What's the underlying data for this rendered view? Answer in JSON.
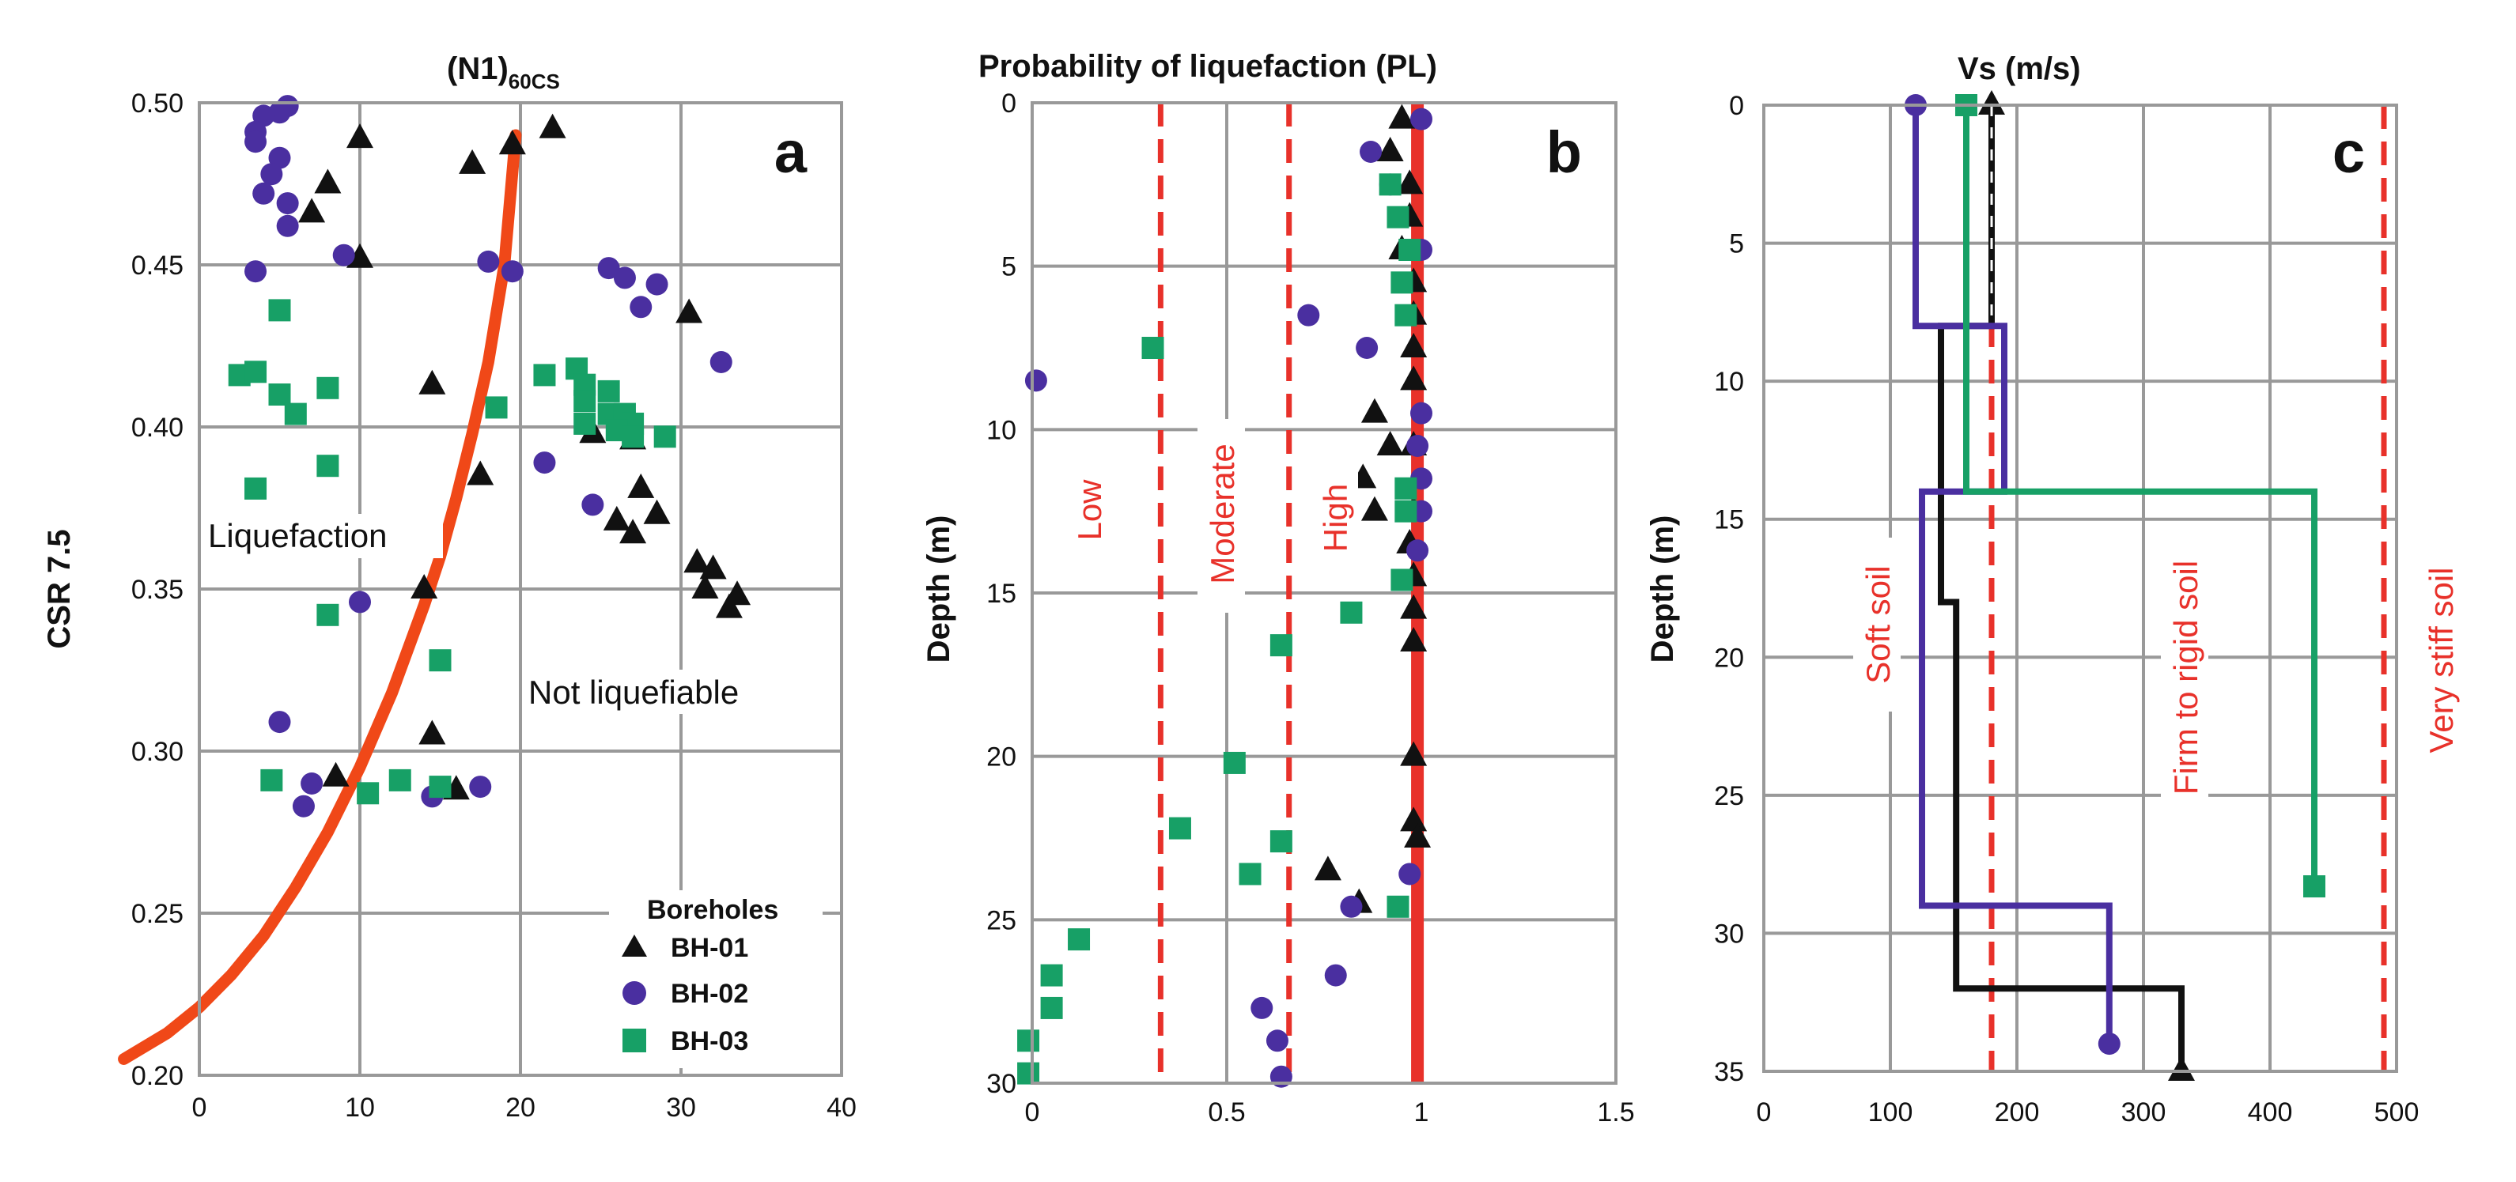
{
  "colors": {
    "bh01": "#111111",
    "bh02": "#4a2fa0",
    "bh03": "#17a066",
    "curve": "#f04818",
    "redline": "#e8312a",
    "grid": "#999999"
  },
  "chart_data": [
    {
      "id": "a",
      "type": "scatter",
      "panel_label": "a",
      "title_main": "(N1)",
      "title_sub": "60CS",
      "ylabel": "CSR 7.5",
      "xlim": [
        0,
        40
      ],
      "ylim": [
        0.2,
        0.5
      ],
      "xticks": [
        0,
        10,
        20,
        30,
        40
      ],
      "yticks": [
        0.2,
        0.25,
        0.3,
        0.35,
        0.4,
        0.45,
        0.5
      ],
      "ytick_labels": [
        "0.20",
        "0.25",
        "0.30",
        "0.35",
        "0.40",
        "0.45",
        "0.50"
      ],
      "annotations": [
        "Liquefaction",
        "Not liquefiable"
      ],
      "legend": {
        "title": "Boreholes",
        "entries": [
          "BH-01",
          "BH-02",
          "BH-03"
        ]
      },
      "curve": [
        [
          -4.7,
          0.205
        ],
        [
          -2,
          0.213
        ],
        [
          0,
          0.221
        ],
        [
          2,
          0.231
        ],
        [
          4,
          0.243
        ],
        [
          6,
          0.258
        ],
        [
          8,
          0.275
        ],
        [
          10,
          0.295
        ],
        [
          12,
          0.318
        ],
        [
          14,
          0.345
        ],
        [
          15,
          0.36
        ],
        [
          16,
          0.378
        ],
        [
          17,
          0.398
        ],
        [
          18,
          0.42
        ],
        [
          19,
          0.45
        ],
        [
          19.7,
          0.49
        ]
      ],
      "series": [
        {
          "name": "BH-01",
          "marker": "triangle",
          "points": [
            [
              10,
              0.489
            ],
            [
              17,
              0.481
            ],
            [
              22,
              0.492
            ],
            [
              19.5,
              0.487
            ],
            [
              8,
              0.475
            ],
            [
              7,
              0.466
            ],
            [
              10,
              0.452
            ],
            [
              30.5,
              0.435
            ],
            [
              14.5,
              0.413
            ],
            [
              24.5,
              0.398
            ],
            [
              27,
              0.396
            ],
            [
              17.5,
              0.385
            ],
            [
              27.5,
              0.381
            ],
            [
              28.5,
              0.373
            ],
            [
              26,
              0.371
            ],
            [
              27,
              0.367
            ],
            [
              31,
              0.358
            ],
            [
              32,
              0.356
            ],
            [
              31.5,
              0.35
            ],
            [
              33.5,
              0.348
            ],
            [
              33,
              0.344
            ],
            [
              14,
              0.35
            ],
            [
              14.5,
              0.305
            ],
            [
              8.5,
              0.292
            ],
            [
              16,
              0.288
            ]
          ]
        },
        {
          "name": "BH-02",
          "marker": "circle",
          "points": [
            [
              5.5,
              0.499
            ],
            [
              5,
              0.497
            ],
            [
              4,
              0.496
            ],
            [
              3.5,
              0.491
            ],
            [
              3.5,
              0.488
            ],
            [
              5,
              0.483
            ],
            [
              4.5,
              0.478
            ],
            [
              4,
              0.472
            ],
            [
              5.5,
              0.469
            ],
            [
              5.5,
              0.462
            ],
            [
              9,
              0.453
            ],
            [
              18,
              0.451
            ],
            [
              19.5,
              0.448
            ],
            [
              3.5,
              0.448
            ],
            [
              25.5,
              0.449
            ],
            [
              26.5,
              0.446
            ],
            [
              28.5,
              0.444
            ],
            [
              27.5,
              0.437
            ],
            [
              32.5,
              0.42
            ],
            [
              21.5,
              0.389
            ],
            [
              24.5,
              0.376
            ],
            [
              10,
              0.346
            ],
            [
              5,
              0.309
            ],
            [
              7,
              0.29
            ],
            [
              6.5,
              0.283
            ],
            [
              14.5,
              0.286
            ],
            [
              17.5,
              0.289
            ]
          ]
        },
        {
          "name": "BH-03",
          "marker": "square",
          "points": [
            [
              5,
              0.436
            ],
            [
              2.5,
              0.416
            ],
            [
              3.5,
              0.417
            ],
            [
              8,
              0.412
            ],
            [
              5,
              0.41
            ],
            [
              6,
              0.404
            ],
            [
              3.5,
              0.381
            ],
            [
              8,
              0.388
            ],
            [
              18.5,
              0.406
            ],
            [
              21.5,
              0.416
            ],
            [
              23.5,
              0.418
            ],
            [
              24,
              0.413
            ],
            [
              24,
              0.408
            ],
            [
              25.5,
              0.411
            ],
            [
              25.5,
              0.404
            ],
            [
              24,
              0.401
            ],
            [
              26.5,
              0.404
            ],
            [
              27,
              0.401
            ],
            [
              26,
              0.399
            ],
            [
              27,
              0.397
            ],
            [
              29,
              0.397
            ],
            [
              8,
              0.342
            ],
            [
              15,
              0.328
            ],
            [
              4.5,
              0.291
            ],
            [
              10.5,
              0.287
            ],
            [
              12.5,
              0.291
            ],
            [
              15,
              0.289
            ]
          ]
        }
      ]
    },
    {
      "id": "b",
      "type": "scatter",
      "panel_label": "b",
      "title": "Probability of liquefaction (PL)",
      "ylabel": "Depth (m)",
      "xlim": [
        0,
        1.5
      ],
      "ylim": [
        30,
        0
      ],
      "xticks": [
        0,
        0.5,
        1,
        1.5
      ],
      "xtick_labels": [
        "0",
        "0.5",
        "1",
        "1.5"
      ],
      "yticks": [
        0,
        5,
        10,
        15,
        20,
        25,
        30
      ],
      "vlines": [
        {
          "x": 0.33,
          "style": "dashed",
          "label": "Low"
        },
        {
          "x": 0.66,
          "style": "dashed",
          "label": "Moderate"
        },
        {
          "x": 0.99,
          "style": "solid",
          "label": "High"
        }
      ],
      "series": [
        {
          "name": "BH-01",
          "marker": "triangle",
          "points": [
            [
              0.95,
              0.5
            ],
            [
              0.92,
              1.5
            ],
            [
              0.97,
              2.5
            ],
            [
              0.97,
              3.5
            ],
            [
              0.95,
              4.5
            ],
            [
              0.98,
              5.5
            ],
            [
              0.98,
              6.5
            ],
            [
              0.98,
              7.5
            ],
            [
              0.98,
              8.5
            ],
            [
              0.88,
              9.5
            ],
            [
              0.92,
              10.5
            ],
            [
              0.98,
              10.5
            ],
            [
              0.85,
              11.5
            ],
            [
              0.88,
              12.5
            ],
            [
              0.98,
              12.5
            ],
            [
              0.97,
              13.5
            ],
            [
              0.98,
              14.5
            ],
            [
              0.98,
              15.5
            ],
            [
              0.98,
              16.5
            ],
            [
              0.98,
              20
            ],
            [
              0.98,
              22
            ],
            [
              0.99,
              22.5
            ],
            [
              0.76,
              23.5
            ],
            [
              0.84,
              24.5
            ]
          ]
        },
        {
          "name": "BH-02",
          "marker": "circle",
          "points": [
            [
              1.0,
              0.5
            ],
            [
              0.87,
              1.5
            ],
            [
              0.92,
              2.5
            ],
            [
              1.0,
              4.5
            ],
            [
              0.71,
              6.5
            ],
            [
              0.86,
              7.5
            ],
            [
              0.01,
              8.5
            ],
            [
              1.0,
              9.5
            ],
            [
              0.99,
              10.5
            ],
            [
              1.0,
              11.5
            ],
            [
              1.0,
              12.5
            ],
            [
              0.99,
              13.7
            ],
            [
              0.97,
              23.6
            ],
            [
              0.82,
              24.6
            ],
            [
              0.78,
              26.7
            ],
            [
              0.59,
              27.7
            ],
            [
              0.63,
              28.7
            ],
            [
              0.64,
              29.8
            ]
          ]
        },
        {
          "name": "BH-03",
          "marker": "square",
          "points": [
            [
              0.92,
              2.5
            ],
            [
              0.94,
              3.5
            ],
            [
              0.97,
              4.5
            ],
            [
              0.95,
              5.5
            ],
            [
              0.96,
              6.5
            ],
            [
              0.31,
              7.5
            ],
            [
              0.96,
              11.8
            ],
            [
              0.96,
              12.5
            ],
            [
              0.95,
              14.6
            ],
            [
              0.82,
              15.6
            ],
            [
              0.64,
              16.6
            ],
            [
              0.52,
              20.2
            ],
            [
              0.38,
              22.2
            ],
            [
              0.64,
              22.6
            ],
            [
              0.56,
              23.6
            ],
            [
              0.94,
              24.6
            ],
            [
              0.12,
              25.6
            ],
            [
              0.05,
              26.7
            ],
            [
              0.05,
              27.7
            ],
            [
              -0.01,
              28.7
            ],
            [
              -0.01,
              29.7
            ]
          ]
        }
      ]
    },
    {
      "id": "c",
      "type": "line",
      "panel_label": "c",
      "title": "Vs (m/s)",
      "ylabel": "Depth (m)",
      "xlim": [
        0,
        500
      ],
      "ylim": [
        35,
        0
      ],
      "xticks": [
        0,
        100,
        200,
        300,
        400,
        500
      ],
      "yticks": [
        0,
        5,
        10,
        15,
        20,
        25,
        30,
        35
      ],
      "vlines": [
        {
          "x": 180,
          "style": "dashed",
          "label": "Soft soil"
        },
        {
          "x": 490,
          "style": "dashed",
          "label": "Very stiff soil"
        }
      ],
      "region_label": "Firm to rigid soil",
      "series": [
        {
          "name": "BH-01",
          "marker": "triangle",
          "points": [
            [
              180,
              0
            ],
            [
              180,
              8
            ],
            [
              140,
              8
            ],
            [
              140,
              18
            ],
            [
              152,
              18
            ],
            [
              152,
              32
            ],
            [
              330,
              32
            ],
            [
              330,
              35
            ]
          ]
        },
        {
          "name": "BH-02",
          "marker": "circle",
          "points": [
            [
              120,
              0
            ],
            [
              120,
              8
            ],
            [
              190,
              8
            ],
            [
              190,
              14
            ],
            [
              125,
              14
            ],
            [
              125,
              29
            ],
            [
              273,
              29
            ],
            [
              273,
              34
            ]
          ]
        },
        {
          "name": "BH-03",
          "marker": "square",
          "points": [
            [
              160,
              0
            ],
            [
              160,
              14
            ],
            [
              435,
              14
            ],
            [
              435,
              28.3
            ]
          ]
        }
      ]
    }
  ]
}
